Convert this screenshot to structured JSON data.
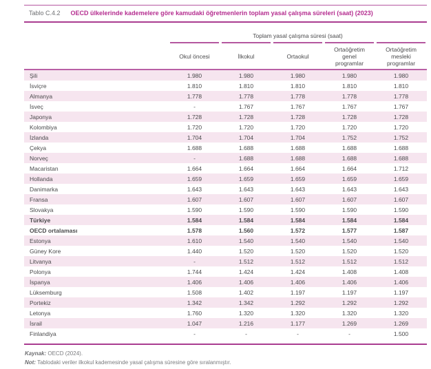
{
  "header": {
    "label": "Tablo C.4.2",
    "title": "OECD ülkelerinde kademelere göre kamudaki öğretmenlerin toplam yasal çalışma süreleri (saat) (2023)"
  },
  "table": {
    "group_header": "Toplam yasal çalışma süresi (saat)",
    "columns": [
      "Okul öncesi",
      "İlkokul",
      "Ortaokul",
      "Ortaöğretim genel programlar",
      "Ortaöğretim mesleki programlar"
    ],
    "rows": [
      {
        "country": "Şili",
        "values": [
          "1.980",
          "1.980",
          "1.980",
          "1.980",
          "1.980"
        ],
        "bold": false
      },
      {
        "country": "İsviçre",
        "values": [
          "1.810",
          "1.810",
          "1.810",
          "1.810",
          "1.810"
        ],
        "bold": false
      },
      {
        "country": "Almanya",
        "values": [
          "1.778",
          "1.778",
          "1.778",
          "1.778",
          "1.778"
        ],
        "bold": false
      },
      {
        "country": "İsveç",
        "values": [
          "-",
          "1.767",
          "1.767",
          "1.767",
          "1.767"
        ],
        "bold": false
      },
      {
        "country": "Japonya",
        "values": [
          "1.728",
          "1.728",
          "1.728",
          "1.728",
          "1.728"
        ],
        "bold": false
      },
      {
        "country": "Kolombiya",
        "values": [
          "1.720",
          "1.720",
          "1.720",
          "1.720",
          "1.720"
        ],
        "bold": false
      },
      {
        "country": "İzlanda",
        "values": [
          "1.704",
          "1.704",
          "1.704",
          "1.752",
          "1.752"
        ],
        "bold": false
      },
      {
        "country": "Çekya",
        "values": [
          "1.688",
          "1.688",
          "1.688",
          "1.688",
          "1.688"
        ],
        "bold": false
      },
      {
        "country": "Norveç",
        "values": [
          "-",
          "1.688",
          "1.688",
          "1.688",
          "1.688"
        ],
        "bold": false
      },
      {
        "country": "Macaristan",
        "values": [
          "1.664",
          "1.664",
          "1.664",
          "1.664",
          "1.712"
        ],
        "bold": false
      },
      {
        "country": "Hollanda",
        "values": [
          "1.659",
          "1.659",
          "1.659",
          "1.659",
          "1.659"
        ],
        "bold": false
      },
      {
        "country": "Danimarka",
        "values": [
          "1.643",
          "1.643",
          "1.643",
          "1.643",
          "1.643"
        ],
        "bold": false
      },
      {
        "country": "Fransa",
        "values": [
          "1.607",
          "1.607",
          "1.607",
          "1.607",
          "1.607"
        ],
        "bold": false
      },
      {
        "country": "Slovakya",
        "values": [
          "1.590",
          "1.590",
          "1.590",
          "1.590",
          "1.590"
        ],
        "bold": false
      },
      {
        "country": "Türkiye",
        "values": [
          "1.584",
          "1.584",
          "1.584",
          "1.584",
          "1.584"
        ],
        "bold": true
      },
      {
        "country": "OECD ortalaması",
        "values": [
          "1.578",
          "1.560",
          "1.572",
          "1.577",
          "1.587"
        ],
        "bold": true
      },
      {
        "country": "Estonya",
        "values": [
          "1.610",
          "1.540",
          "1.540",
          "1.540",
          "1.540"
        ],
        "bold": false
      },
      {
        "country": "Güney Kore",
        "values": [
          "1.440",
          "1.520",
          "1.520",
          "1.520",
          "1.520"
        ],
        "bold": false
      },
      {
        "country": "Litvanya",
        "values": [
          "-",
          "1.512",
          "1.512",
          "1.512",
          "1.512"
        ],
        "bold": false
      },
      {
        "country": "Polonya",
        "values": [
          "1.744",
          "1.424",
          "1.424",
          "1.408",
          "1.408"
        ],
        "bold": false
      },
      {
        "country": "İspanya",
        "values": [
          "1.406",
          "1.406",
          "1.406",
          "1.406",
          "1.406"
        ],
        "bold": false
      },
      {
        "country": "Lüksemburg",
        "values": [
          "1.508",
          "1.402",
          "1.197",
          "1.197",
          "1.197"
        ],
        "bold": false
      },
      {
        "country": "Portekiz",
        "values": [
          "1.342",
          "1.342",
          "1.292",
          "1.292",
          "1.292"
        ],
        "bold": false
      },
      {
        "country": "Letonya",
        "values": [
          "1.760",
          "1.320",
          "1.320",
          "1.320",
          "1.320"
        ],
        "bold": false
      },
      {
        "country": "İsrail",
        "values": [
          "1.047",
          "1.216",
          "1.177",
          "1.269",
          "1.269"
        ],
        "bold": false
      },
      {
        "country": "Finlandiya",
        "values": [
          "-",
          "-",
          "-",
          "-",
          "1.500"
        ],
        "bold": false
      }
    ]
  },
  "footnotes": {
    "source_label": "Kaynak:",
    "source_text": "OECD (2024).",
    "note_label": "Not:",
    "note_text": "Tablodaki veriler ilkokul kademesinde yasal çalışma süresine göre sıralanmıştır."
  },
  "colors": {
    "accent_magenta": "#b52e90",
    "border_magenta": "#b4569f",
    "row_stripe_pink": "#f6e5ef",
    "body_text_gray": "#4a4a4c",
    "footnote_gray": "#7a7b7e"
  }
}
